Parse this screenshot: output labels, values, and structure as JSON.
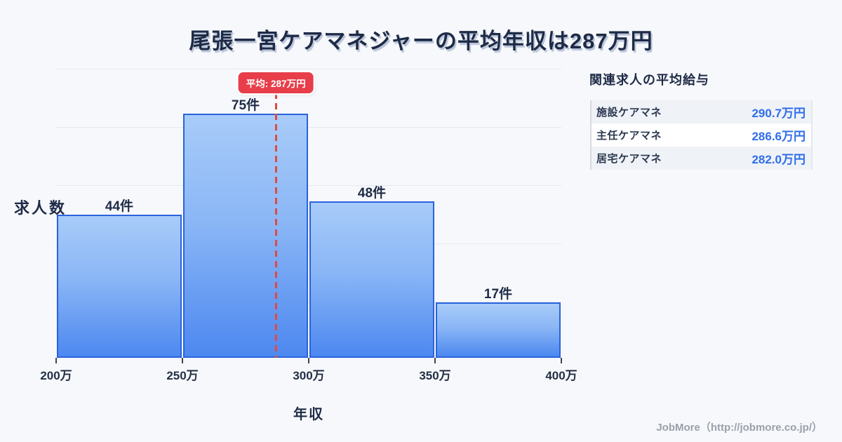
{
  "title": "尾張一宮ケアマネジャーの平均年収は287万円",
  "chart_data": {
    "type": "bar",
    "subtype": "histogram",
    "title": "尾張一宮ケアマネジャーの平均年収は287万円",
    "xlabel": "年収",
    "ylabel": "求人数",
    "bin_edges": [
      200,
      250,
      300,
      350,
      400
    ],
    "bin_edge_labels": [
      "200万",
      "250万",
      "300万",
      "350万",
      "400万"
    ],
    "values": [
      44,
      75,
      48,
      17
    ],
    "bar_labels": [
      "44件",
      "75件",
      "48件",
      "17件"
    ],
    "average": {
      "value": 287,
      "label": "平均: 287万円"
    },
    "grid": "horizontal",
    "legend": "none"
  },
  "related": {
    "heading": "関連求人の平均給与",
    "rows": [
      {
        "label": "施設ケアマネ",
        "value": "290.7万円"
      },
      {
        "label": "主任ケアマネ",
        "value": "286.6万円"
      },
      {
        "label": "居宅ケアマネ",
        "value": "282.0万円"
      }
    ]
  },
  "footer": {
    "credit": "JobMore（http://jobmore.co.jp/）"
  },
  "colors": {
    "background": "#f7f8fb",
    "title_text": "#1e2b47",
    "bar_border": "#2a63dd",
    "bar_gradient_top": "#a8ccf9",
    "bar_gradient_bottom": "#4d88f0",
    "average_red": "#e73e4a",
    "dashed_line_red": "#e2493f",
    "value_blue": "#2f6ee9",
    "gridline": "#e4e8ef",
    "footer_gray": "#99a1ab"
  }
}
